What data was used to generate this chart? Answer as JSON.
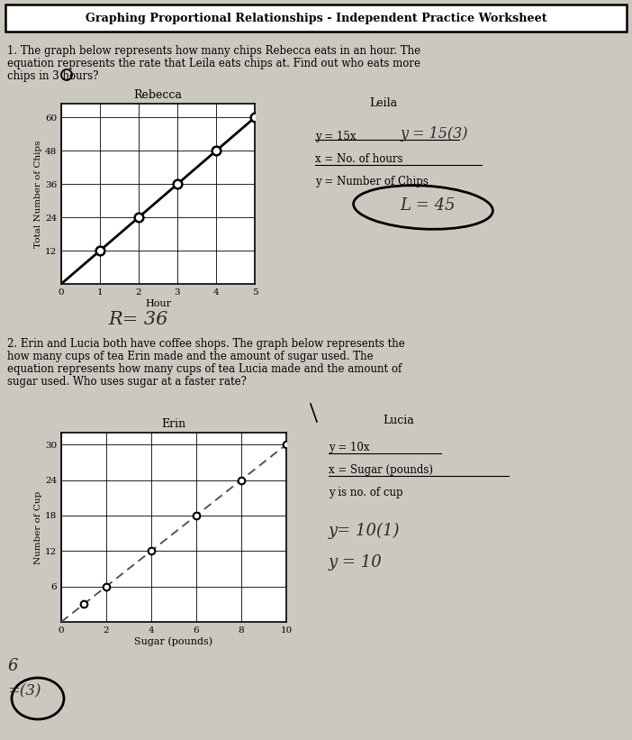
{
  "title": "Graphing Proportional Relationships - Independent Practice Worksheet",
  "bg_color": "#ccc8c0",
  "problem1": {
    "text_lines": [
      "1. The graph below represents how many chips Rebecca eats in an hour. The",
      "equation represents the rate that Leila eats chips at. Find out who eats more",
      "chips in 3 hours?"
    ],
    "graph_title": "Rebecca",
    "ylabel": "Total Number of Chips",
    "xlabel": "Hour",
    "ytick_labels": [
      "12",
      "24",
      "36",
      "48",
      "60"
    ],
    "xtick_labels": [
      "1",
      "2",
      "3",
      "4",
      "5"
    ],
    "x_data": [
      0,
      1,
      2,
      3,
      4,
      5
    ],
    "y_data": [
      0,
      12,
      24,
      36,
      48,
      60
    ],
    "right_title": "Leila",
    "right_eq": "y = 15x",
    "right_hw_eq": "y = 15(3)",
    "right_xdef": "x = No. of hours",
    "right_ydef": "y = Number of Chips",
    "right_circled": "L ≈ 45",
    "bottom_hw": "R = 36"
  },
  "problem2": {
    "text_lines": [
      "2. Erin and Lucia both have coffee shops. The graph below represents the",
      "how many cups of tea Erin made and the amount of sugar used. The",
      "equation represents how many cups of tea Lucia made and the amount of",
      "sugar used. Who uses sugar at a faster rate?"
    ],
    "graph_title": "Erin",
    "ylabel": "Number of Cup",
    "xlabel": "Sugar (pounds)",
    "ytick_labels": [
      "6",
      "12",
      "18",
      "24",
      "30"
    ],
    "xtick_labels": [
      "2",
      "4",
      "6",
      "8",
      "10"
    ],
    "x_data": [
      0,
      2,
      4,
      6,
      8,
      10
    ],
    "y_data": [
      0,
      6,
      12,
      18,
      24,
      30
    ],
    "right_title": "Lucia",
    "right_eq": "y = 10x",
    "right_xdef": "x = Sugar (pounds)",
    "right_ydef": "y is no. of cup",
    "right_hw1": "y= 10(1)",
    "right_hw2": "y = 10",
    "left_hw1": "6",
    "left_hw2": "=(3)"
  }
}
